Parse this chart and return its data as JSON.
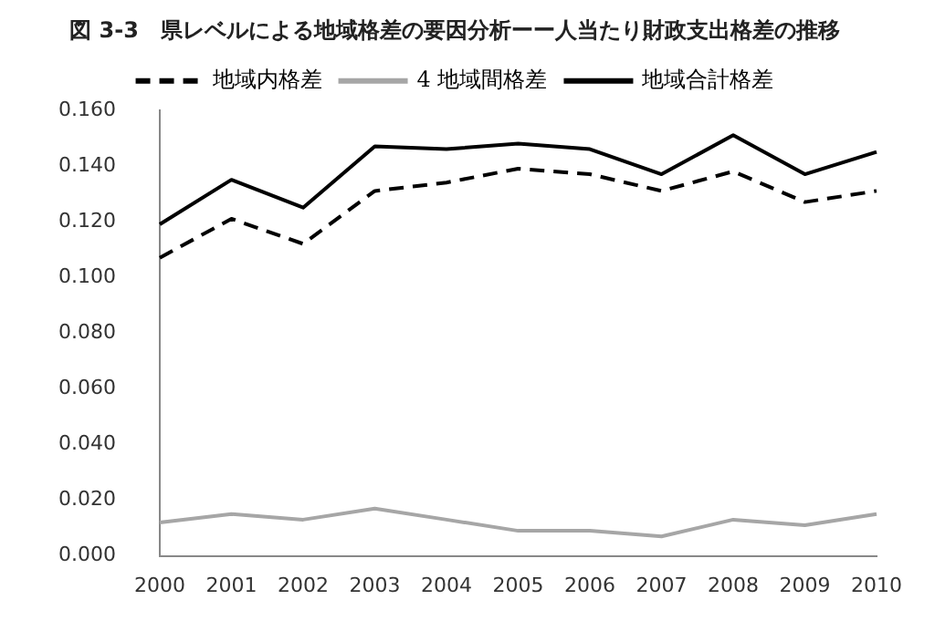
{
  "chart_data": {
    "type": "line",
    "title": "図 3-3　県レベルによる地域格差の要因分析ーー人当たり財政支出格差の推移",
    "categories": [
      "2000",
      "2001",
      "2002",
      "2003",
      "2004",
      "2005",
      "2006",
      "2007",
      "2008",
      "2009",
      "2010"
    ],
    "series": [
      {
        "name": "地域内格差",
        "color": "#000000",
        "line_style": "dashed",
        "values": [
          0.107,
          0.121,
          0.112,
          0.131,
          0.134,
          0.139,
          0.137,
          0.131,
          0.138,
          0.127,
          0.131
        ]
      },
      {
        "name": "4 地域間格差",
        "color": "#a6a6a6",
        "line_style": "solid",
        "values": [
          0.012,
          0.015,
          0.013,
          0.017,
          0.013,
          0.009,
          0.009,
          0.007,
          0.013,
          0.011,
          0.015
        ]
      },
      {
        "name": "地域合計格差",
        "color": "#000000",
        "line_style": "solid",
        "values": [
          0.119,
          0.135,
          0.125,
          0.147,
          0.146,
          0.148,
          0.146,
          0.137,
          0.151,
          0.137,
          0.145
        ]
      }
    ],
    "ylim": [
      0,
      0.16
    ],
    "yticks": [
      {
        "value": 0,
        "label": "0.000"
      },
      {
        "value": 0.02,
        "label": "0.020"
      },
      {
        "value": 0.04,
        "label": "0.040"
      },
      {
        "value": 0.06,
        "label": "0.060"
      },
      {
        "value": 0.08,
        "label": "0.080"
      },
      {
        "value": 0.1,
        "label": "0.100"
      },
      {
        "value": 0.12,
        "label": "0.120"
      },
      {
        "value": 0.14,
        "label": "0.140"
      },
      {
        "value": 0.16,
        "label": "0.160"
      }
    ],
    "grid": false,
    "legend": "top",
    "marker": "none"
  }
}
